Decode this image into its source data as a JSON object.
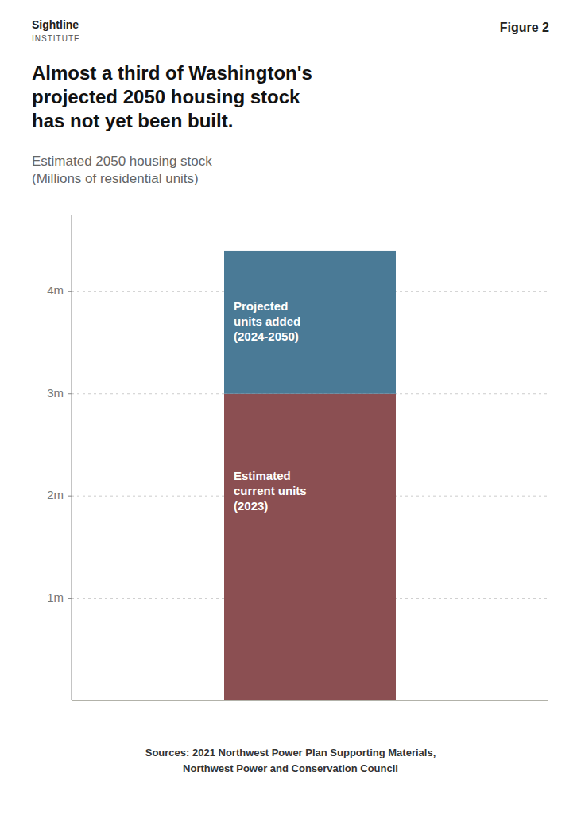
{
  "chart_data": {
    "type": "bar",
    "stacked": true,
    "title": "Almost a third of Washington's\nprojected 2050 housing stock\nhas not yet been built.",
    "subtitle": "Estimated 2050 housing stock\n(Millions of residential units)",
    "annotations": [
      "Figure 2",
      "Sightline",
      "INSTITUTE",
      "Sources: 2021 Northwest Power Plan Supporting Materials,\nNorthwest Power and Conservation Council"
    ],
    "categories": [
      null
    ],
    "series": [
      {
        "name": "Estimated\ncurrent units\n(2023)",
        "color": "#8B4F52",
        "values": [
          3.0
        ]
      },
      {
        "name": "Projected\nunits added\n(2024-2050)",
        "color": "#4A7A96",
        "values": [
          1.4
        ]
      }
    ],
    "ylim": [
      0,
      4.75
    ],
    "yticks": [
      {
        "value": 1,
        "label": "1m"
      },
      {
        "value": 2,
        "label": "2m"
      },
      {
        "value": 3,
        "label": "3m"
      },
      {
        "value": 4,
        "label": "4m"
      }
    ],
    "grid": true,
    "tick_labels": "y"
  }
}
